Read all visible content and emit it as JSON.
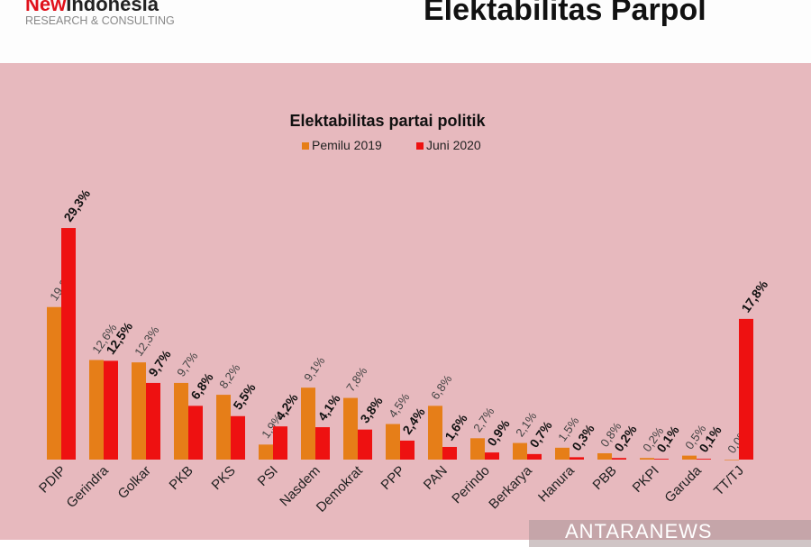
{
  "header": {
    "logo_new": "New",
    "logo_indonesia": "Indonesia",
    "logo_tagline": "RESEARCH & CONSULTING",
    "title": "Elektabilitas Parpol"
  },
  "watermark": "ANTARANEWS",
  "colors": {
    "background": "#e7b9be",
    "pemilu2019": "#e67e18",
    "juni2020": "#ee1111"
  },
  "chart_data": {
    "type": "bar",
    "title": "Elektabilitas partai politik",
    "legend_position": "top",
    "categories": [
      "PDIP",
      "Gerindra",
      "Golkar",
      "PKB",
      "PKS",
      "PSI",
      "Nasdem",
      "Demokrat",
      "PPP",
      "PAN",
      "Perindo",
      "Berkarya",
      "Hanura",
      "PBB",
      "PKPI",
      "Garuda",
      "TT/TJ"
    ],
    "series": [
      {
        "name": "Pemilu 2019",
        "values": [
          19.3,
          12.6,
          12.3,
          9.7,
          8.2,
          1.9,
          9.1,
          7.8,
          4.5,
          6.8,
          2.7,
          2.1,
          1.5,
          0.8,
          0.2,
          0.5,
          0.0
        ],
        "labels": [
          "19,3%",
          "12,6%",
          "12,3%",
          "9,7%",
          "8,2%",
          "1,9%",
          "9,1%",
          "7,8%",
          "4,5%",
          "6,8%",
          "2,7%",
          "2,1%",
          "1,5%",
          "0,8%",
          "0,2%",
          "0,5%",
          "0,0%"
        ]
      },
      {
        "name": "Juni 2020",
        "values": [
          29.3,
          12.5,
          9.7,
          6.8,
          5.5,
          4.2,
          4.1,
          3.8,
          2.4,
          1.6,
          0.9,
          0.7,
          0.3,
          0.2,
          0.1,
          0.1,
          17.8
        ],
        "labels": [
          "29,3%",
          "12,5%",
          "9,7%",
          "6,8%",
          "5,5%",
          "4,2%",
          "4,1%",
          "3,8%",
          "2,4%",
          "1,6%",
          "0,9%",
          "0,7%",
          "0,3%",
          "0,2%",
          "0,1%",
          "0,1%",
          "17,8%"
        ]
      }
    ],
    "xlabel": "",
    "ylabel": "",
    "grid": false
  }
}
